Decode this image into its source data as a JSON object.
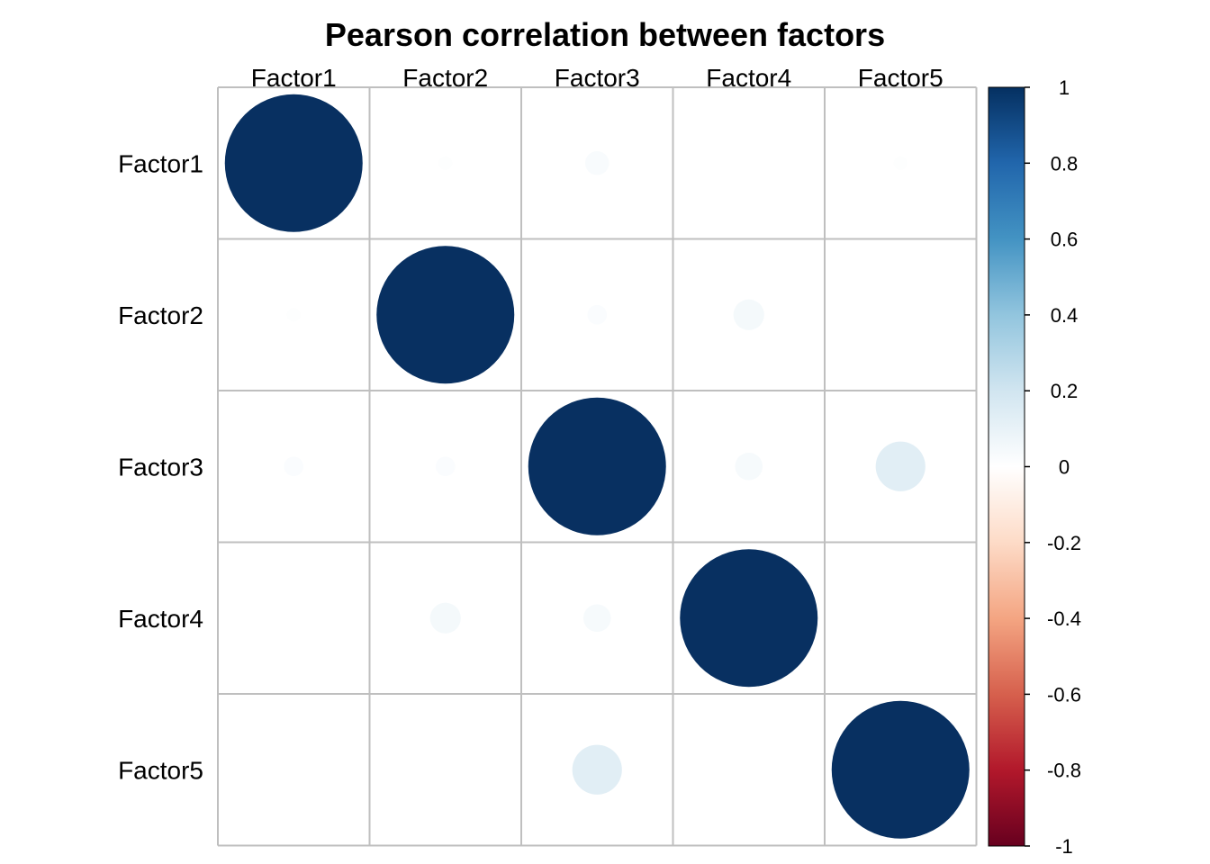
{
  "chart_data": {
    "type": "heatmap",
    "title": "Pearson correlation between factors",
    "columns": [
      "Factor1",
      "Factor2",
      "Factor3",
      "Factor4",
      "Factor5"
    ],
    "rows": [
      "Factor1",
      "Factor2",
      "Factor3",
      "Factor4",
      "Factor5"
    ],
    "values": [
      [
        1.0,
        0.01,
        0.03,
        0.0,
        0.01
      ],
      [
        0.01,
        1.0,
        0.02,
        0.05,
        0.0
      ],
      [
        0.02,
        0.02,
        1.0,
        0.04,
        0.13
      ],
      [
        0.0,
        0.05,
        0.04,
        1.0,
        0.0
      ],
      [
        0.0,
        0.0,
        0.13,
        0.0,
        1.0
      ]
    ],
    "color_range": [
      -1,
      1
    ],
    "colorbar_ticks": [
      1,
      0.8,
      0.6,
      0.4,
      0.2,
      0,
      -0.2,
      -0.4,
      -0.6,
      -0.8,
      -1
    ],
    "colorbar_tick_labels": [
      "1",
      "0.8",
      "0.6",
      "0.4",
      "0.2",
      "0",
      "-0.2",
      "-0.4",
      "-0.6",
      "-0.8",
      "-1"
    ],
    "legend_placement": "right",
    "grid": true,
    "colors": {
      "strong_positive": "#08306b",
      "positive": "#2166ac",
      "neutral": "#ffffff",
      "negative": "#b2182b",
      "strong_negative": "#67001f",
      "grid": "#bfbfbf"
    }
  }
}
